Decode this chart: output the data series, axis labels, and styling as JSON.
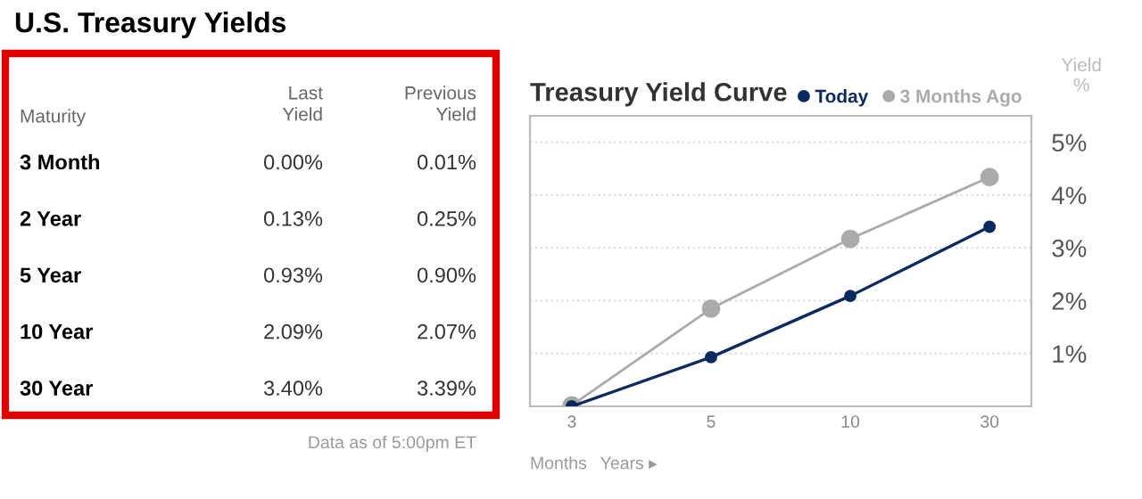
{
  "chart_data": [
    {
      "type": "other",
      "title": "U.S. Treasury Yields",
      "xlabel": "Maturity",
      "categories": [
        "3 Month",
        "2 Year",
        "5 Year",
        "10 Year",
        "30 Year"
      ],
      "series": [
        {
          "name": "Last\nYield",
          "values": [
            0.0,
            0.13,
            0.93,
            2.09,
            3.4
          ],
          "value_labels": [
            "0.00%",
            "0.13%",
            "0.93%",
            "2.09%",
            "3.40%"
          ]
        },
        {
          "name": "Previous\nYield",
          "values": [
            0.01,
            0.25,
            0.9,
            2.07,
            3.39
          ],
          "value_labels": [
            "0.01%",
            "0.25%",
            "0.90%",
            "2.07%",
            "3.39%"
          ]
        }
      ],
      "annotations": [
        "Data as of 5:00pm ET"
      ]
    },
    {
      "type": "line",
      "title": "Treasury Yield Curve",
      "ylabel": "Yield\n%",
      "categories": [
        "3",
        "5",
        "10",
        "30"
      ],
      "series": [
        {
          "name": "3 Months Ago",
          "color": "#aaaaaa",
          "values": [
            0.02,
            1.85,
            3.17,
            4.34
          ]
        },
        {
          "name": "Today",
          "color": "#0d2a5e",
          "values": [
            0.0,
            0.93,
            2.09,
            3.4
          ]
        }
      ],
      "ylim": [
        0,
        5.5
      ],
      "yticks": [
        {
          "value": 1,
          "label": "1%"
        },
        {
          "value": 2,
          "label": "2%"
        },
        {
          "value": 3,
          "label": "3%"
        },
        {
          "value": 4,
          "label": "4%"
        },
        {
          "value": 5,
          "label": "5%"
        }
      ],
      "annotations": [
        "Months",
        "Years ▸"
      ],
      "grid": "y",
      "legend": "top right",
      "marker": "circle",
      "line_style": "solid"
    }
  ]
}
